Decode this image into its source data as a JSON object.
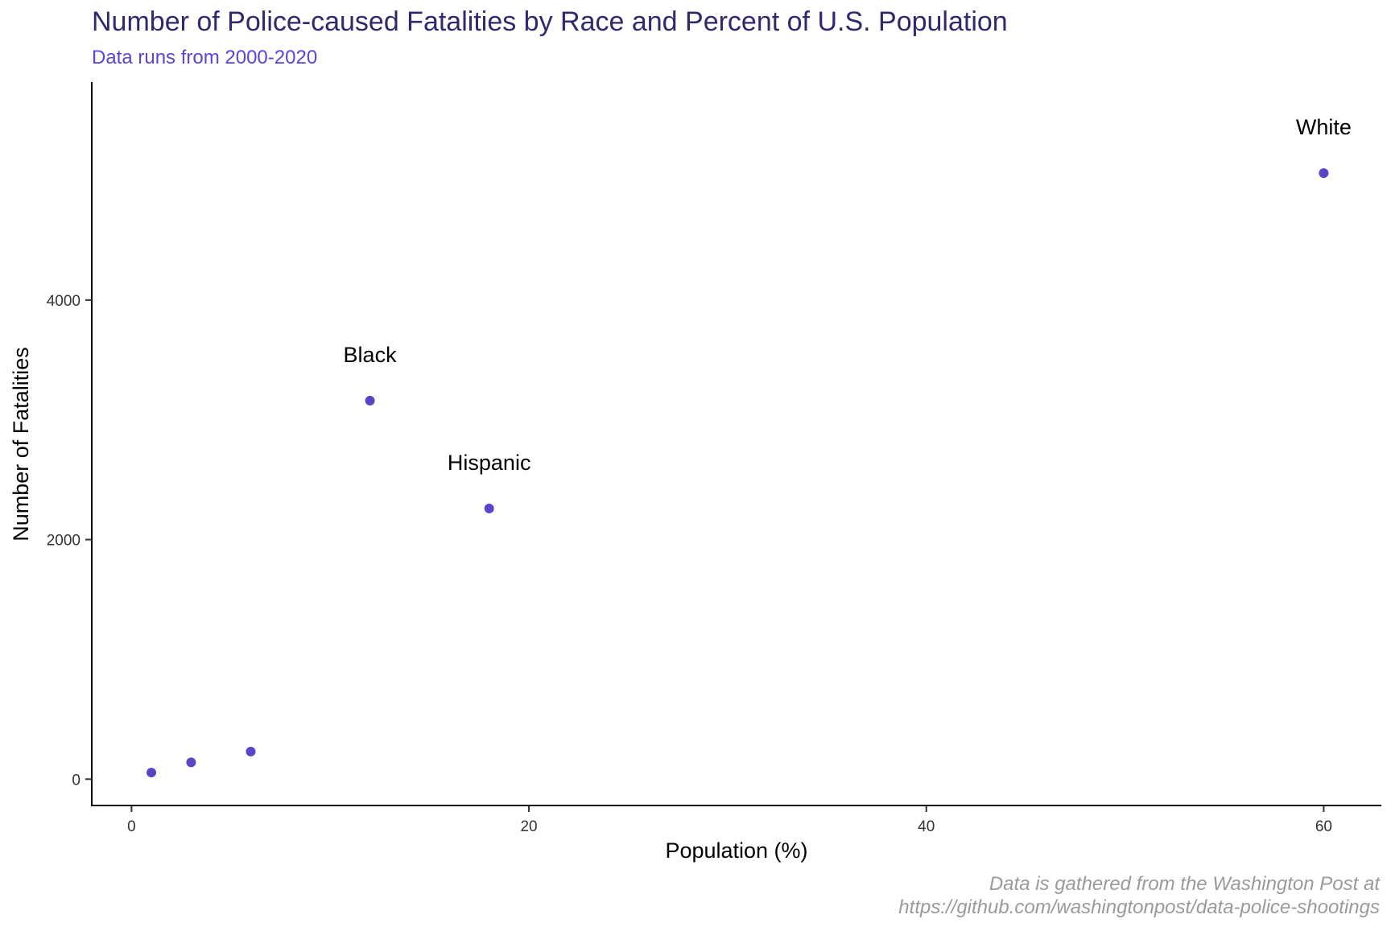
{
  "chart_data": {
    "type": "scatter",
    "title": "Number of Police-caused Fatalities by Race and Percent of U.S. Population",
    "subtitle": "Data runs from 2000-2020",
    "xlabel": "Population (%)",
    "ylabel": "Number of Fatalities",
    "caption": [
      "Data is gathered from the Washington Post at",
      "https://github.com/washingtonpost/data-police-shootings"
    ],
    "xlim": [
      -2,
      62.9
    ],
    "ylim": [
      -220,
      5820
    ],
    "x_ticks": [
      0,
      20,
      40,
      60
    ],
    "y_ticks": [
      0,
      2000,
      4000
    ],
    "grid": false,
    "legend": "none",
    "point_color": "#5b44c6",
    "points": [
      {
        "x": 1,
        "y": 55,
        "label": ""
      },
      {
        "x": 3,
        "y": 140,
        "label": ""
      },
      {
        "x": 6,
        "y": 230,
        "label": ""
      },
      {
        "x": 12,
        "y": 3160,
        "label": "Black"
      },
      {
        "x": 18,
        "y": 2260,
        "label": "Hispanic"
      },
      {
        "x": 60,
        "y": 5060,
        "label": "White"
      }
    ]
  }
}
